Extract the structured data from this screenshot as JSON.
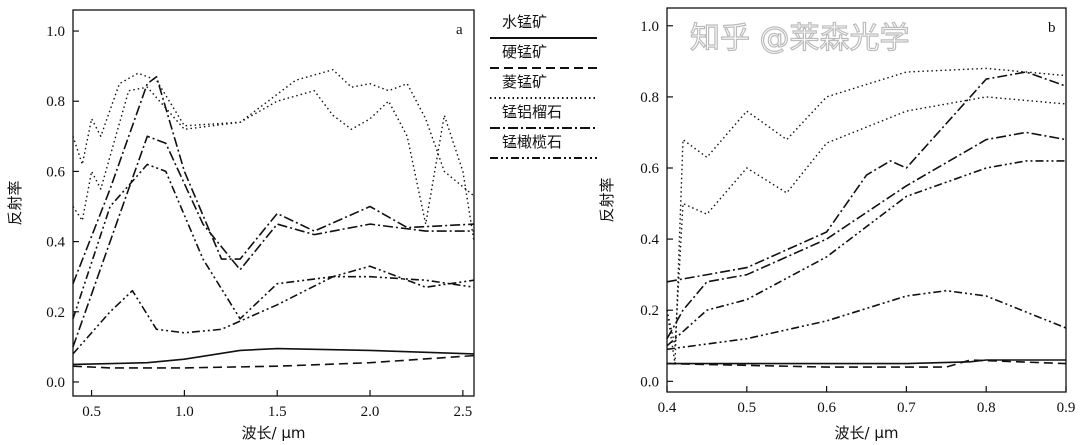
{
  "chart_data": [
    {
      "type": "line",
      "panel_label": "a",
      "xlabel": "波长/ μm",
      "ylabel": "反射率",
      "xlim": [
        0.4,
        2.56
      ],
      "ylim": [
        -0.04,
        1.06
      ],
      "xticks": [
        0.5,
        1.0,
        1.5,
        2.0,
        2.5
      ],
      "xtick_labels": [
        "0.5",
        "1.0",
        "1.5",
        "2.0",
        "2.5"
      ],
      "yticks": [
        0.0,
        0.2,
        0.4,
        0.6,
        0.8,
        1.0
      ],
      "ytick_labels": [
        "0.0",
        "0.2",
        "0.4",
        "0.6",
        "0.8",
        "1.0"
      ],
      "series": [
        {
          "name": "水锰矿",
          "style": "solid",
          "points": [
            [
              0.4,
              0.05
            ],
            [
              0.8,
              0.055
            ],
            [
              1.0,
              0.065
            ],
            [
              1.3,
              0.09
            ],
            [
              1.5,
              0.095
            ],
            [
              2.0,
              0.09
            ],
            [
              2.56,
              0.08
            ]
          ]
        },
        {
          "name": "硬锰矿",
          "style": "dashed",
          "points": [
            [
              0.4,
              0.045
            ],
            [
              0.6,
              0.04
            ],
            [
              1.0,
              0.04
            ],
            [
              1.5,
              0.045
            ],
            [
              2.0,
              0.055
            ],
            [
              2.56,
              0.075
            ]
          ]
        },
        {
          "name": "菱锰矿",
          "style": "dotted",
          "points": [
            [
              0.4,
              0.7
            ],
            [
              0.45,
              0.62
            ],
            [
              0.5,
              0.75
            ],
            [
              0.55,
              0.7
            ],
            [
              0.65,
              0.85
            ],
            [
              0.75,
              0.88
            ],
            [
              0.85,
              0.86
            ],
            [
              1.0,
              0.73
            ],
            [
              1.3,
              0.74
            ],
            [
              1.6,
              0.86
            ],
            [
              1.8,
              0.89
            ],
            [
              1.9,
              0.84
            ],
            [
              2.0,
              0.85
            ],
            [
              2.1,
              0.83
            ],
            [
              2.2,
              0.85
            ],
            [
              2.3,
              0.75
            ],
            [
              2.4,
              0.6
            ],
            [
              2.56,
              0.53
            ]
          ]
        },
        {
          "name": "菱锰矿",
          "style": "dotted",
          "points": [
            [
              0.4,
              0.5
            ],
            [
              0.45,
              0.46
            ],
            [
              0.5,
              0.6
            ],
            [
              0.55,
              0.55
            ],
            [
              0.7,
              0.83
            ],
            [
              0.8,
              0.84
            ],
            [
              1.0,
              0.72
            ],
            [
              1.3,
              0.74
            ],
            [
              1.5,
              0.8
            ],
            [
              1.7,
              0.83
            ],
            [
              1.8,
              0.76
            ],
            [
              1.9,
              0.72
            ],
            [
              2.0,
              0.75
            ],
            [
              2.1,
              0.8
            ],
            [
              2.2,
              0.7
            ],
            [
              2.3,
              0.45
            ],
            [
              2.4,
              0.76
            ],
            [
              2.5,
              0.6
            ],
            [
              2.56,
              0.4
            ]
          ]
        },
        {
          "name": "锰铝榴石",
          "style": "dashdot",
          "points": [
            [
              0.4,
              0.28
            ],
            [
              0.6,
              0.55
            ],
            [
              0.8,
              0.85
            ],
            [
              0.85,
              0.87
            ],
            [
              1.0,
              0.6
            ],
            [
              1.2,
              0.35
            ],
            [
              1.3,
              0.35
            ],
            [
              1.5,
              0.48
            ],
            [
              1.7,
              0.43
            ],
            [
              2.0,
              0.5
            ],
            [
              2.2,
              0.44
            ],
            [
              2.56,
              0.45
            ]
          ]
        },
        {
          "name": "锰铝榴石",
          "style": "dashdot",
          "points": [
            [
              0.4,
              0.1
            ],
            [
              0.6,
              0.4
            ],
            [
              0.8,
              0.7
            ],
            [
              0.9,
              0.68
            ],
            [
              1.1,
              0.45
            ],
            [
              1.3,
              0.32
            ],
            [
              1.5,
              0.45
            ],
            [
              1.7,
              0.42
            ],
            [
              2.0,
              0.45
            ],
            [
              2.3,
              0.43
            ],
            [
              2.56,
              0.43
            ]
          ]
        },
        {
          "name": "锰橄榄石",
          "style": "dashdotdot",
          "points": [
            [
              0.4,
              0.18
            ],
            [
              0.6,
              0.5
            ],
            [
              0.8,
              0.62
            ],
            [
              0.9,
              0.6
            ],
            [
              1.1,
              0.35
            ],
            [
              1.3,
              0.18
            ],
            [
              1.5,
              0.28
            ],
            [
              1.8,
              0.3
            ],
            [
              2.0,
              0.33
            ],
            [
              2.3,
              0.27
            ],
            [
              2.56,
              0.29
            ]
          ]
        },
        {
          "name": "锰橄榄石",
          "style": "dashdotdot",
          "points": [
            [
              0.4,
              0.08
            ],
            [
              0.6,
              0.2
            ],
            [
              0.72,
              0.26
            ],
            [
              0.85,
              0.15
            ],
            [
              1.0,
              0.14
            ],
            [
              1.2,
              0.15
            ],
            [
              1.5,
              0.22
            ],
            [
              1.8,
              0.3
            ],
            [
              2.0,
              0.3
            ],
            [
              2.3,
              0.29
            ],
            [
              2.56,
              0.27
            ]
          ]
        }
      ]
    },
    {
      "type": "line",
      "panel_label": "b",
      "xlabel": "波长/ μm",
      "ylabel": "反射率",
      "xlim": [
        0.4,
        0.9
      ],
      "ylim": [
        -0.03,
        1.05
      ],
      "xticks": [
        0.4,
        0.5,
        0.6,
        0.7,
        0.8,
        0.9
      ],
      "xtick_labels": [
        "0.4",
        "0.5",
        "0.6",
        "0.7",
        "0.8",
        "0.9"
      ],
      "yticks": [
        0.0,
        0.2,
        0.4,
        0.6,
        0.8,
        1.0
      ],
      "ytick_labels": [
        "0.0",
        "0.2",
        "0.4",
        "0.6",
        "0.8",
        "1.0"
      ],
      "series": [
        {
          "name": "水锰矿",
          "style": "solid",
          "points": [
            [
              0.4,
              0.05
            ],
            [
              0.7,
              0.05
            ],
            [
              0.78,
              0.055
            ],
            [
              0.8,
              0.06
            ],
            [
              0.9,
              0.06
            ]
          ]
        },
        {
          "name": "硬锰矿",
          "style": "dashed",
          "points": [
            [
              0.4,
              0.05
            ],
            [
              0.6,
              0.04
            ],
            [
              0.75,
              0.04
            ],
            [
              0.78,
              0.06
            ],
            [
              0.9,
              0.05
            ]
          ]
        },
        {
          "name": "菱锰矿",
          "style": "dotted",
          "points": [
            [
              0.4,
              0.2
            ],
            [
              0.41,
              0.05
            ],
            [
              0.42,
              0.68
            ],
            [
              0.45,
              0.63
            ],
            [
              0.5,
              0.76
            ],
            [
              0.55,
              0.68
            ],
            [
              0.6,
              0.8
            ],
            [
              0.7,
              0.87
            ],
            [
              0.8,
              0.88
            ],
            [
              0.9,
              0.86
            ]
          ]
        },
        {
          "name": "菱锰矿",
          "style": "dotted",
          "points": [
            [
              0.4,
              0.2
            ],
            [
              0.41,
              0.1
            ],
            [
              0.42,
              0.5
            ],
            [
              0.45,
              0.47
            ],
            [
              0.5,
              0.6
            ],
            [
              0.55,
              0.53
            ],
            [
              0.6,
              0.67
            ],
            [
              0.7,
              0.76
            ],
            [
              0.8,
              0.8
            ],
            [
              0.9,
              0.78
            ]
          ]
        },
        {
          "name": "锰铝榴石",
          "style": "dashdot",
          "points": [
            [
              0.4,
              0.28
            ],
            [
              0.5,
              0.32
            ],
            [
              0.6,
              0.42
            ],
            [
              0.65,
              0.58
            ],
            [
              0.68,
              0.62
            ],
            [
              0.7,
              0.6
            ],
            [
              0.8,
              0.85
            ],
            [
              0.85,
              0.87
            ],
            [
              0.9,
              0.83
            ]
          ]
        },
        {
          "name": "锰铝榴石",
          "style": "dashdot",
          "points": [
            [
              0.4,
              0.12
            ],
            [
              0.42,
              0.2
            ],
            [
              0.45,
              0.28
            ],
            [
              0.5,
              0.3
            ],
            [
              0.6,
              0.4
            ],
            [
              0.7,
              0.55
            ],
            [
              0.8,
              0.68
            ],
            [
              0.85,
              0.7
            ],
            [
              0.9,
              0.68
            ]
          ]
        },
        {
          "name": "锰橄榄石",
          "style": "dashdotdot",
          "points": [
            [
              0.4,
              0.1
            ],
            [
              0.45,
              0.2
            ],
            [
              0.5,
              0.23
            ],
            [
              0.6,
              0.35
            ],
            [
              0.7,
              0.52
            ],
            [
              0.8,
              0.6
            ],
            [
              0.85,
              0.62
            ],
            [
              0.9,
              0.62
            ]
          ]
        },
        {
          "name": "锰橄榄石",
          "style": "dashdotdot",
          "points": [
            [
              0.4,
              0.09
            ],
            [
              0.5,
              0.12
            ],
            [
              0.6,
              0.17
            ],
            [
              0.7,
              0.24
            ],
            [
              0.75,
              0.255
            ],
            [
              0.8,
              0.24
            ],
            [
              0.9,
              0.15
            ]
          ]
        }
      ]
    }
  ],
  "legend": {
    "placement": "between panels",
    "entries": [
      {
        "label": "水锰矿",
        "style": "solid"
      },
      {
        "label": "硬锰矿",
        "style": "dashed"
      },
      {
        "label": "菱锰矿",
        "style": "dotted"
      },
      {
        "label": "锰铝榴石",
        "style": "dashdot"
      },
      {
        "label": "锰橄榄石",
        "style": "dashdotdot"
      }
    ]
  },
  "watermark": "知乎 @莱森光学"
}
